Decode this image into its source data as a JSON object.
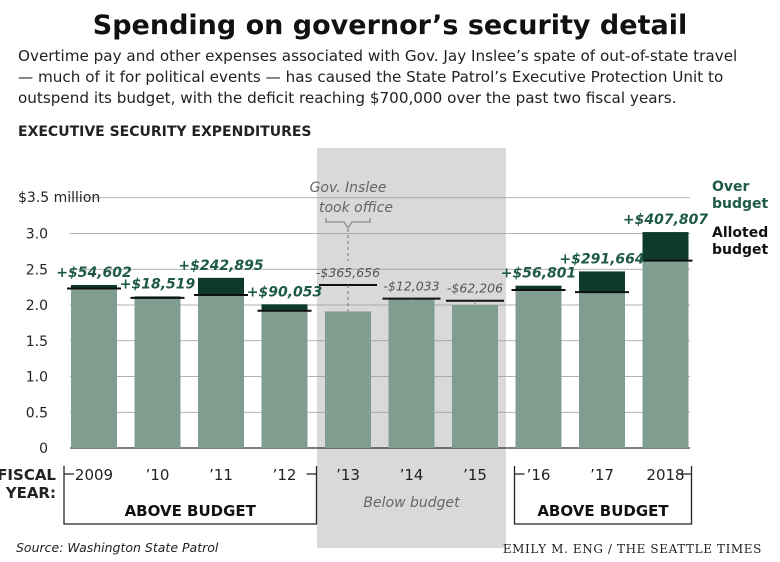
{
  "title": "Spending on governor’s security detail",
  "subtitle_lines": [
    "Overtime pay and other expenses associated with Gov. Jay Inslee’s spate of out-of-state travel",
    "— much of it for political events — has caused the State Patrol’s Executive Protection Unit to",
    "outspend its budget, with the deficit reaching $700,000 over the past two fiscal years."
  ],
  "source": "Source: Washington State Patrol",
  "credit": "EMILY M. ENG / THE SEATTLE TIMES",
  "colors": {
    "bar": "#7f9e90",
    "overage": "#0e3a2e",
    "budget_line": "#111111",
    "shade": "#d9d9d9",
    "over_text": "#1e5a44",
    "under_text": "#555555"
  },
  "chart_data": {
    "type": "bar",
    "title": "EXECUTIVE SECURITY EXPENDITURES",
    "xlabel": "FISCAL YEAR:",
    "ylabel": "",
    "ylim": [
      0,
      3.5
    ],
    "yticks": [
      {
        "value": 0,
        "label": "0"
      },
      {
        "value": 0.5,
        "label": "0.5"
      },
      {
        "value": 1.0,
        "label": "1.0"
      },
      {
        "value": 1.5,
        "label": "1.5"
      },
      {
        "value": 2.0,
        "label": "2.0"
      },
      {
        "value": 2.5,
        "label": "2.5"
      },
      {
        "value": 3.0,
        "label": "3.0"
      },
      {
        "value": 3.5,
        "label": "$3.5 million"
      }
    ],
    "grid": true,
    "categories": [
      "2009",
      "’10",
      "’11",
      "’12",
      "’13",
      "’14",
      "’15",
      "’16",
      "’17",
      "2018"
    ],
    "series": [
      {
        "name": "Alloted budget",
        "values": [
          2.23,
          2.1,
          2.14,
          1.92,
          2.28,
          2.09,
          2.06,
          2.21,
          2.18,
          2.62
        ]
      },
      {
        "name": "Over budget",
        "values": [
          54602,
          18519,
          242895,
          90053,
          -365656,
          -12033,
          -62206,
          56801,
          291664,
          407807
        ]
      }
    ],
    "expenditures": [
      2.28,
      2.12,
      2.38,
      2.01,
      1.91,
      2.08,
      2.0,
      2.27,
      2.47,
      3.02
    ],
    "difference_labels": [
      "+$54,602",
      "+$18,519",
      "+$242,895",
      "+$90,053",
      "-$365,656",
      "-$12,033",
      "-$62,206",
      "+$56,801",
      "+$291,664",
      "+$407,807"
    ],
    "annotation": "Gov. Inslee took office",
    "annotation_lines": [
      "Gov. Inslee",
      "took office"
    ],
    "shaded_range": [
      "’13",
      "’15"
    ],
    "legend": {
      "over": [
        "Over",
        "budget"
      ],
      "budget": [
        "Alloted",
        "budget"
      ],
      "placement": "right"
    },
    "groups": [
      {
        "label": "ABOVE BUDGET",
        "from": "2009",
        "to": "’12"
      },
      {
        "label": "Below budget",
        "from": "’13",
        "to": "’15"
      },
      {
        "label": "ABOVE BUDGET",
        "from": "’16",
        "to": "2018"
      }
    ],
    "fiscal_year_label": [
      "FISCAL",
      "YEAR:"
    ]
  }
}
